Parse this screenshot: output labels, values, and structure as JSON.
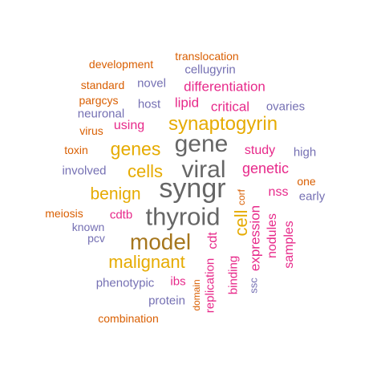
{
  "palette": {
    "orange": "#d95f02",
    "purple": "#7570b3",
    "magenta": "#e7298a",
    "gold": "#e6ab02",
    "brown": "#a6761d",
    "gray": "#666666"
  },
  "words": [
    {
      "text": "syngr",
      "color": "gray"
    },
    {
      "text": "thyroid",
      "color": "gray"
    },
    {
      "text": "gene",
      "color": "gray"
    },
    {
      "text": "viral",
      "color": "gray"
    },
    {
      "text": "model",
      "color": "brown"
    },
    {
      "text": "synaptogyrin",
      "color": "gold"
    },
    {
      "text": "genes",
      "color": "gold"
    },
    {
      "text": "cells",
      "color": "gold"
    },
    {
      "text": "malignant",
      "color": "gold"
    },
    {
      "text": "benign",
      "color": "gold"
    },
    {
      "text": "cell",
      "color": "gold"
    },
    {
      "text": "genetic",
      "color": "magenta"
    },
    {
      "text": "study",
      "color": "magenta"
    },
    {
      "text": "differentiation",
      "color": "magenta"
    },
    {
      "text": "lipid",
      "color": "magenta"
    },
    {
      "text": "critical",
      "color": "magenta"
    },
    {
      "text": "using",
      "color": "magenta"
    },
    {
      "text": "nss",
      "color": "magenta"
    },
    {
      "text": "cdtb",
      "color": "magenta"
    },
    {
      "text": "cdt",
      "color": "magenta"
    },
    {
      "text": "expression",
      "color": "magenta"
    },
    {
      "text": "nodules",
      "color": "magenta"
    },
    {
      "text": "samples",
      "color": "magenta"
    },
    {
      "text": "binding",
      "color": "magenta"
    },
    {
      "text": "replication",
      "color": "magenta"
    },
    {
      "text": "ibs",
      "color": "magenta"
    },
    {
      "text": "cellugyrin",
      "color": "purple"
    },
    {
      "text": "novel",
      "color": "purple"
    },
    {
      "text": "host",
      "color": "purple"
    },
    {
      "text": "ovaries",
      "color": "purple"
    },
    {
      "text": "neuronal",
      "color": "purple"
    },
    {
      "text": "high",
      "color": "purple"
    },
    {
      "text": "involved",
      "color": "purple"
    },
    {
      "text": "early",
      "color": "purple"
    },
    {
      "text": "known",
      "color": "purple"
    },
    {
      "text": "pcv",
      "color": "purple"
    },
    {
      "text": "phenotypic",
      "color": "purple"
    },
    {
      "text": "protein",
      "color": "purple"
    },
    {
      "text": "ssc",
      "color": "purple"
    },
    {
      "text": "development",
      "color": "orange"
    },
    {
      "text": "translocation",
      "color": "orange"
    },
    {
      "text": "standard",
      "color": "orange"
    },
    {
      "text": "pargcys",
      "color": "orange"
    },
    {
      "text": "virus",
      "color": "orange"
    },
    {
      "text": "toxin",
      "color": "orange"
    },
    {
      "text": "one",
      "color": "orange"
    },
    {
      "text": "meiosis",
      "color": "orange"
    },
    {
      "text": "corf",
      "color": "orange"
    },
    {
      "text": "domain",
      "color": "orange"
    },
    {
      "text": "combination",
      "color": "orange"
    }
  ]
}
